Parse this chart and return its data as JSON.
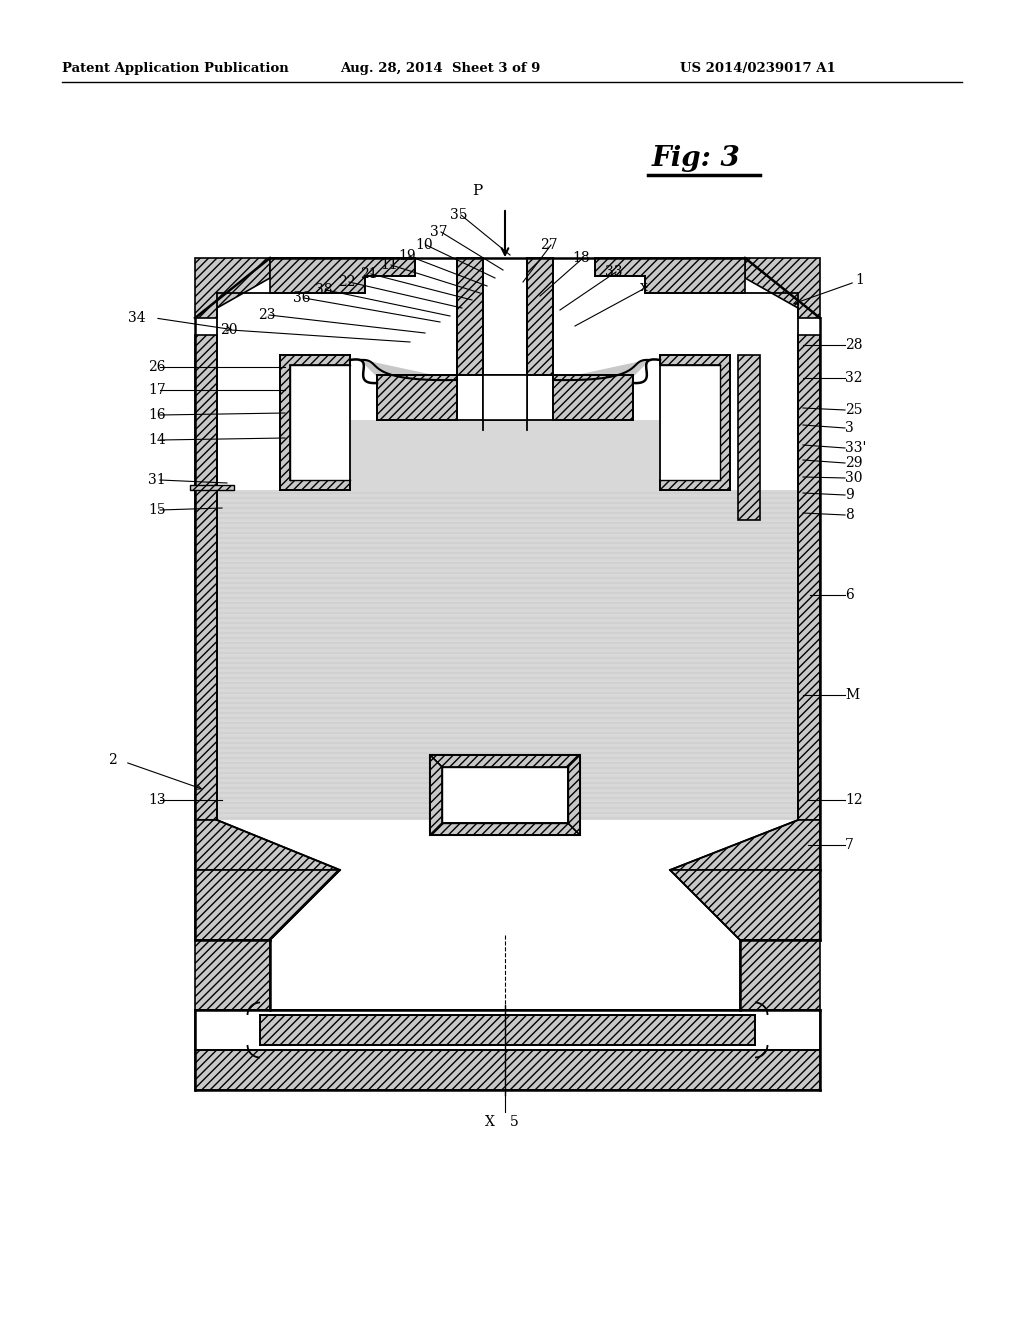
{
  "title_left": "Patent Application Publication",
  "title_mid": "Aug. 28, 2014  Sheet 3 of 9",
  "title_right": "US 2014/0239017 A1",
  "fig_label": "Fig: 3",
  "background_color": "#ffffff",
  "gray_fill": "#c8c8c8",
  "hatch_fill": "#c0c0c0",
  "dot_fill": "#d8d8d8",
  "white_fill": "#ffffff",
  "line_color": "#000000"
}
